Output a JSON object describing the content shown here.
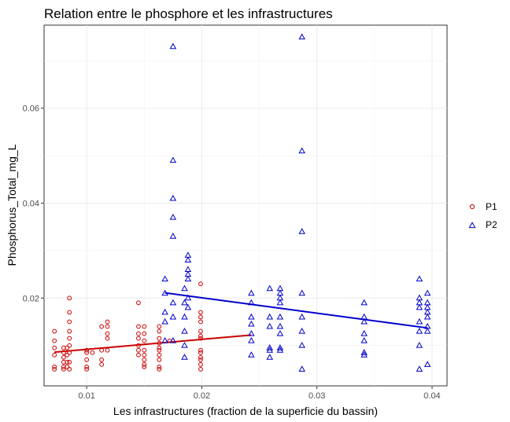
{
  "chart_data": {
    "type": "scatter",
    "title": "Relation entre le phosphore et les infrastructures",
    "xlabel": "Les infrastructures (fraction de la superficie du bassin)",
    "ylabel": "Phosphorus_Total_mg_L",
    "xlim": [
      0.0063,
      0.0413
    ],
    "ylim": [
      0.0015,
      0.0775
    ],
    "x_ticks": [
      0.01,
      0.02,
      0.03,
      0.04
    ],
    "x_tick_labels": [
      "0.01",
      "0.02",
      "0.03",
      "0.04"
    ],
    "y_ticks": [
      0.02,
      0.04,
      0.06
    ],
    "y_tick_labels": [
      "0.02",
      "0.04",
      "0.06"
    ],
    "grid": true,
    "legend_position": "right",
    "series": [
      {
        "name": "P1",
        "color": "#cc0000",
        "marker": "circle",
        "points": [
          [
            0.0072,
            0.013
          ],
          [
            0.0072,
            0.011
          ],
          [
            0.0072,
            0.0095
          ],
          [
            0.0072,
            0.008
          ],
          [
            0.0072,
            0.0055
          ],
          [
            0.0072,
            0.005
          ],
          [
            0.008,
            0.0095
          ],
          [
            0.008,
            0.0085
          ],
          [
            0.008,
            0.0075
          ],
          [
            0.008,
            0.0065
          ],
          [
            0.008,
            0.0055
          ],
          [
            0.008,
            0.005
          ],
          [
            0.0083,
            0.0095
          ],
          [
            0.0083,
            0.008
          ],
          [
            0.0083,
            0.0065
          ],
          [
            0.0083,
            0.0055
          ],
          [
            0.0085,
            0.02
          ],
          [
            0.0085,
            0.017
          ],
          [
            0.0085,
            0.015
          ],
          [
            0.0085,
            0.013
          ],
          [
            0.0085,
            0.0115
          ],
          [
            0.0085,
            0.01
          ],
          [
            0.0085,
            0.0085
          ],
          [
            0.0085,
            0.0065
          ],
          [
            0.0085,
            0.005
          ],
          [
            0.01,
            0.009
          ],
          [
            0.01,
            0.0085
          ],
          [
            0.01,
            0.007
          ],
          [
            0.01,
            0.0055
          ],
          [
            0.01,
            0.005
          ],
          [
            0.0105,
            0.0085
          ],
          [
            0.0113,
            0.014
          ],
          [
            0.0113,
            0.009
          ],
          [
            0.0113,
            0.007
          ],
          [
            0.0113,
            0.006
          ],
          [
            0.0118,
            0.015
          ],
          [
            0.0118,
            0.014
          ],
          [
            0.0118,
            0.0125
          ],
          [
            0.0118,
            0.0115
          ],
          [
            0.0118,
            0.009
          ],
          [
            0.0145,
            0.019
          ],
          [
            0.0145,
            0.014
          ],
          [
            0.0145,
            0.0125
          ],
          [
            0.0145,
            0.0115
          ],
          [
            0.0145,
            0.01
          ],
          [
            0.0145,
            0.009
          ],
          [
            0.0145,
            0.008
          ],
          [
            0.015,
            0.014
          ],
          [
            0.015,
            0.0125
          ],
          [
            0.015,
            0.011
          ],
          [
            0.015,
            0.009
          ],
          [
            0.015,
            0.008
          ],
          [
            0.015,
            0.007
          ],
          [
            0.015,
            0.006
          ],
          [
            0.015,
            0.0055
          ],
          [
            0.0163,
            0.014
          ],
          [
            0.0163,
            0.013
          ],
          [
            0.0163,
            0.0115
          ],
          [
            0.0163,
            0.0105
          ],
          [
            0.0163,
            0.0095
          ],
          [
            0.0163,
            0.009
          ],
          [
            0.0163,
            0.008
          ],
          [
            0.0163,
            0.007
          ],
          [
            0.0163,
            0.0055
          ],
          [
            0.0163,
            0.005
          ],
          [
            0.0172,
            0.011
          ],
          [
            0.0199,
            0.023
          ],
          [
            0.0199,
            0.017
          ],
          [
            0.0199,
            0.016
          ],
          [
            0.0199,
            0.015
          ],
          [
            0.0199,
            0.013
          ],
          [
            0.0199,
            0.012
          ],
          [
            0.0199,
            0.0115
          ],
          [
            0.0199,
            0.009
          ],
          [
            0.0199,
            0.0085
          ],
          [
            0.0199,
            0.0075
          ],
          [
            0.0199,
            0.007
          ],
          [
            0.0199,
            0.006
          ],
          [
            0.0199,
            0.005
          ]
        ],
        "trend": {
          "x_start": 0.0072,
          "y_start": 0.0086,
          "x_end": 0.0243,
          "y_end": 0.0122
        }
      },
      {
        "name": "P2",
        "color": "#0000cc",
        "marker": "triangle",
        "points": [
          [
            0.0175,
            0.073
          ],
          [
            0.0175,
            0.049
          ],
          [
            0.0175,
            0.041
          ],
          [
            0.0175,
            0.037
          ],
          [
            0.0175,
            0.033
          ],
          [
            0.0168,
            0.024
          ],
          [
            0.0168,
            0.021
          ],
          [
            0.0168,
            0.017
          ],
          [
            0.0168,
            0.015
          ],
          [
            0.0168,
            0.011
          ],
          [
            0.0175,
            0.019
          ],
          [
            0.0175,
            0.016
          ],
          [
            0.0175,
            0.011
          ],
          [
            0.0185,
            0.022
          ],
          [
            0.0185,
            0.019
          ],
          [
            0.0185,
            0.016
          ],
          [
            0.0185,
            0.013
          ],
          [
            0.0185,
            0.01
          ],
          [
            0.0185,
            0.0075
          ],
          [
            0.0188,
            0.029
          ],
          [
            0.0188,
            0.028
          ],
          [
            0.0188,
            0.026
          ],
          [
            0.0188,
            0.025
          ],
          [
            0.0188,
            0.024
          ],
          [
            0.0188,
            0.02
          ],
          [
            0.0188,
            0.018
          ],
          [
            0.0243,
            0.021
          ],
          [
            0.0243,
            0.019
          ],
          [
            0.0243,
            0.016
          ],
          [
            0.0243,
            0.0145
          ],
          [
            0.0243,
            0.0125
          ],
          [
            0.0243,
            0.011
          ],
          [
            0.0243,
            0.008
          ],
          [
            0.0259,
            0.022
          ],
          [
            0.0259,
            0.016
          ],
          [
            0.0259,
            0.014
          ],
          [
            0.0259,
            0.0095
          ],
          [
            0.0259,
            0.009
          ],
          [
            0.0259,
            0.0075
          ],
          [
            0.0268,
            0.022
          ],
          [
            0.0268,
            0.021
          ],
          [
            0.0268,
            0.02
          ],
          [
            0.0268,
            0.019
          ],
          [
            0.0268,
            0.016
          ],
          [
            0.0268,
            0.014
          ],
          [
            0.0268,
            0.0125
          ],
          [
            0.0268,
            0.0095
          ],
          [
            0.0268,
            0.009
          ],
          [
            0.0287,
            0.075
          ],
          [
            0.0287,
            0.051
          ],
          [
            0.0287,
            0.034
          ],
          [
            0.0287,
            0.021
          ],
          [
            0.0287,
            0.016
          ],
          [
            0.0287,
            0.013
          ],
          [
            0.0287,
            0.01
          ],
          [
            0.0287,
            0.005
          ],
          [
            0.0341,
            0.019
          ],
          [
            0.0341,
            0.016
          ],
          [
            0.0341,
            0.015
          ],
          [
            0.0341,
            0.0125
          ],
          [
            0.0341,
            0.011
          ],
          [
            0.0341,
            0.0085
          ],
          [
            0.0341,
            0.008
          ],
          [
            0.0389,
            0.024
          ],
          [
            0.0389,
            0.02
          ],
          [
            0.0389,
            0.019
          ],
          [
            0.0389,
            0.018
          ],
          [
            0.0389,
            0.015
          ],
          [
            0.0389,
            0.013
          ],
          [
            0.0389,
            0.01
          ],
          [
            0.0389,
            0.005
          ],
          [
            0.0396,
            0.021
          ],
          [
            0.0396,
            0.019
          ],
          [
            0.0396,
            0.018
          ],
          [
            0.0396,
            0.017
          ],
          [
            0.0396,
            0.016
          ],
          [
            0.0396,
            0.014
          ],
          [
            0.0396,
            0.013
          ],
          [
            0.0396,
            0.006
          ]
        ],
        "trend": {
          "x_start": 0.0168,
          "y_start": 0.0211,
          "x_end": 0.0396,
          "y_end": 0.0137
        }
      }
    ]
  }
}
